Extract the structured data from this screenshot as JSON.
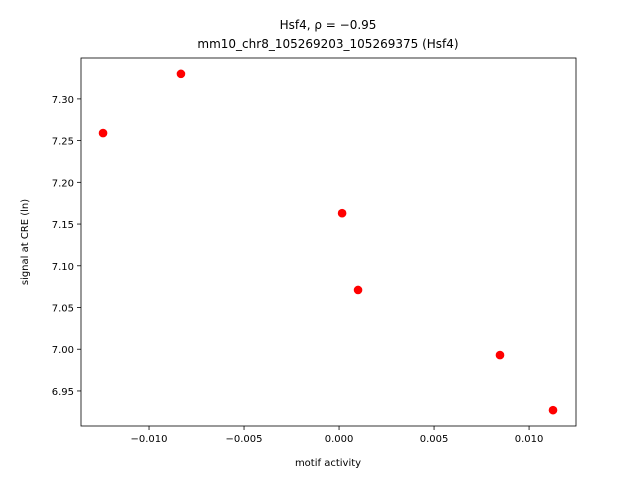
{
  "chart_data": {
    "type": "scatter",
    "title": "Hsf4, ρ = −0.95",
    "subtitle": "mm10_chr8_105269203_105269375 (Hsf4)",
    "x_label": "motif activity",
    "y_label": "signal at CRE (ln)",
    "color": "#ff0000",
    "x": [
      -0.01242,
      -0.00832,
      0.00016,
      0.001,
      0.00847,
      0.01126
    ],
    "values": [
      7.259,
      7.33,
      7.163,
      7.071,
      6.993,
      6.927
    ],
    "xlim": [
      -0.01358,
      0.01247
    ],
    "ylim": [
      6.908,
      7.349
    ],
    "xticks": [
      {
        "value": -0.01,
        "label": "−0.010"
      },
      {
        "value": -0.005,
        "label": "−0.005"
      },
      {
        "value": 0,
        "label": "0.000"
      },
      {
        "value": 0.005,
        "label": "0.005"
      },
      {
        "value": 0.01,
        "label": "0.010"
      }
    ],
    "yticks": [
      6.95,
      {
        "value": 7.0,
        "label": "7.00"
      },
      7.05,
      {
        "value": 7.1,
        "label": "7.10"
      },
      7.15,
      {
        "value": 7.2,
        "label": "7.20"
      },
      7.25,
      {
        "value": 7.3,
        "label": "7.30"
      }
    ]
  }
}
